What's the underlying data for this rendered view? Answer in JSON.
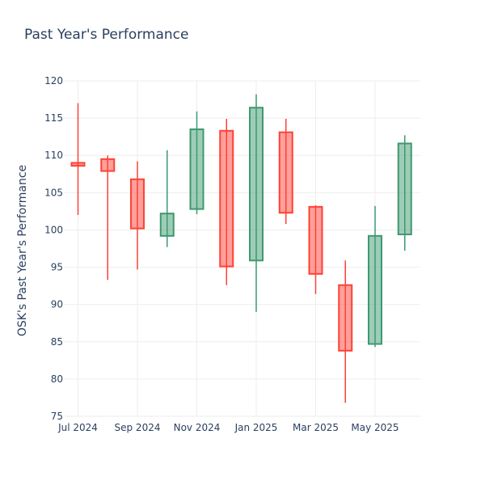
{
  "chart_data": {
    "type": "candlestick",
    "title": "Past Year's Performance",
    "xlabel": "",
    "ylabel": "OSK's Past Year's Performance",
    "ylim": [
      75,
      120
    ],
    "yticks": [
      75,
      80,
      85,
      90,
      95,
      100,
      105,
      110,
      115,
      120
    ],
    "xticks": [
      {
        "label": "Jul 2024",
        "month": 0
      },
      {
        "label": "Sep 2024",
        "month": 2
      },
      {
        "label": "Nov 2024",
        "month": 4
      },
      {
        "label": "Jan 2025",
        "month": 6
      },
      {
        "label": "Mar 2025",
        "month": 8
      },
      {
        "label": "May 2025",
        "month": 10
      }
    ],
    "grid": true,
    "increasing_color": "#3d9970",
    "decreasing_color": "#ff4136",
    "candles": [
      {
        "month": 0,
        "open": 109.0,
        "high": 117.0,
        "low": 102.0,
        "close": 108.6
      },
      {
        "month": 1,
        "open": 109.5,
        "high": 110.0,
        "low": 93.3,
        "close": 107.9
      },
      {
        "month": 2,
        "open": 106.8,
        "high": 109.2,
        "low": 94.7,
        "close": 100.2
      },
      {
        "month": 3,
        "open": 99.2,
        "high": 110.7,
        "low": 97.7,
        "close": 102.2
      },
      {
        "month": 4,
        "open": 102.8,
        "high": 115.9,
        "low": 102.1,
        "close": 113.5
      },
      {
        "month": 5,
        "open": 113.3,
        "high": 114.9,
        "low": 92.6,
        "close": 95.1
      },
      {
        "month": 6,
        "open": 95.9,
        "high": 118.2,
        "low": 89.0,
        "close": 116.4
      },
      {
        "month": 7,
        "open": 113.1,
        "high": 114.9,
        "low": 100.8,
        "close": 102.3
      },
      {
        "month": 8,
        "open": 103.1,
        "high": 103.3,
        "low": 91.4,
        "close": 94.1
      },
      {
        "month": 9,
        "open": 92.6,
        "high": 95.9,
        "low": 76.8,
        "close": 83.8
      },
      {
        "month": 10,
        "open": 84.7,
        "high": 103.2,
        "low": 84.3,
        "close": 99.2
      },
      {
        "month": 11,
        "open": 99.4,
        "high": 112.7,
        "low": 97.2,
        "close": 111.6
      }
    ]
  }
}
